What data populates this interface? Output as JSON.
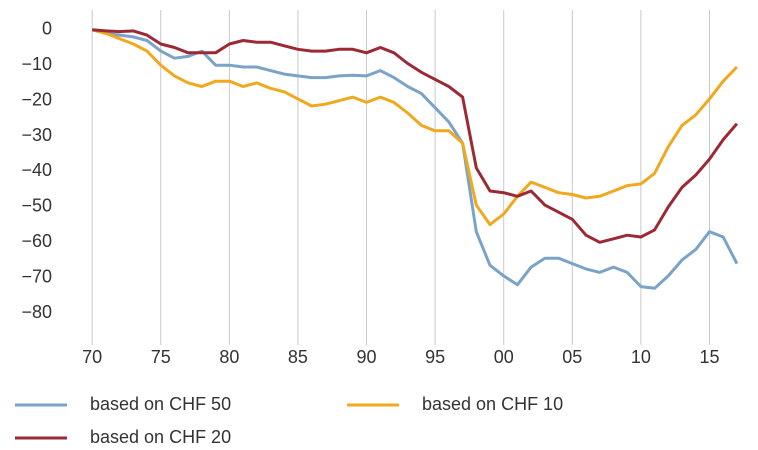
{
  "chart_data": {
    "type": "line",
    "x": [
      1970,
      1971,
      1972,
      1973,
      1974,
      1975,
      1976,
      1977,
      1978,
      1979,
      1980,
      1981,
      1982,
      1983,
      1984,
      1985,
      1986,
      1987,
      1988,
      1989,
      1990,
      1991,
      1992,
      1993,
      1994,
      1995,
      1996,
      1997,
      1998,
      1999,
      2000,
      2001,
      2002,
      2003,
      2004,
      2005,
      2006,
      2007,
      2008,
      2009,
      2010,
      2011,
      2012,
      2013,
      2014,
      2015,
      2016,
      2017
    ],
    "series": [
      {
        "name": "based on CHF 50",
        "color": "#7ba3c8",
        "values": [
          0,
          -1,
          -1.5,
          -2,
          -3,
          -6,
          -8,
          -7.5,
          -6,
          -10,
          -10,
          -10.5,
          -10.5,
          -11.5,
          -12.5,
          -13,
          -13.5,
          -13.5,
          -13,
          -12.8,
          -13,
          -11.5,
          -13.5,
          -16,
          -18,
          -22,
          -26,
          -32,
          -57,
          -66.5,
          -69.5,
          -72,
          -67,
          -64.5,
          -64.5,
          -66,
          -67.5,
          -68.5,
          -67,
          -68.5,
          -72.5,
          -73,
          -69.5,
          -65,
          -62,
          -57,
          -58.5,
          -66
        ]
      },
      {
        "name": "based on CHF 10",
        "color": "#f0a81c",
        "values": [
          0,
          -1,
          -2.5,
          -4,
          -6,
          -10,
          -13,
          -15,
          -16,
          -14.5,
          -14.5,
          -16,
          -15,
          -16.5,
          -17.5,
          -19.5,
          -21.5,
          -21,
          -20,
          -19,
          -20.5,
          -19,
          -20.5,
          -23.5,
          -27,
          -28.5,
          -28.5,
          -32,
          -49.5,
          -55,
          -52,
          -47,
          -43,
          -44.5,
          -46,
          -46.5,
          -47.5,
          -47,
          -45.5,
          -44,
          -43.5,
          -40.5,
          -33,
          -27,
          -24,
          -19.5,
          -14.5,
          -10.5
        ]
      },
      {
        "name": "based on CHF 20",
        "color": "#9b2a35",
        "values": [
          0,
          -0.3,
          -0.5,
          -0.3,
          -1.5,
          -4,
          -5,
          -6.5,
          -6.5,
          -6.5,
          -4,
          -3,
          -3.5,
          -3.5,
          -4.5,
          -5.5,
          -6,
          -6,
          -5.5,
          -5.5,
          -6.5,
          -5,
          -6.5,
          -9.5,
          -12,
          -14,
          -16,
          -19,
          -39,
          -45.5,
          -46,
          -47,
          -45.5,
          -49.5,
          -51.5,
          -53.5,
          -58,
          -60,
          -59,
          -58,
          -58.5,
          -56.5,
          -50,
          -44.5,
          -41,
          -36.5,
          -31,
          -26.5
        ]
      }
    ],
    "xlim": [
      1967.8,
      2018.1
    ],
    "xticks": [
      {
        "value": 1970,
        "label": "70"
      },
      {
        "value": 1975,
        "label": "75"
      },
      {
        "value": 1980,
        "label": "80"
      },
      {
        "value": 1985,
        "label": "85"
      },
      {
        "value": 1990,
        "label": "90"
      },
      {
        "value": 1995,
        "label": "95"
      },
      {
        "value": 2000,
        "label": "00"
      },
      {
        "value": 2005,
        "label": "05"
      },
      {
        "value": 2010,
        "label": "10"
      },
      {
        "value": 2015,
        "label": "15"
      }
    ],
    "ylim": [
      -89,
      5.6
    ],
    "yticks": [
      0,
      {
        "value": -10,
        "label": "−10"
      },
      {
        "value": -20,
        "label": "−20"
      },
      {
        "value": -30,
        "label": "−30"
      },
      {
        "value": -40,
        "label": "−40"
      },
      {
        "value": -50,
        "label": "−50"
      },
      {
        "value": -60,
        "label": "−60"
      },
      {
        "value": -70,
        "label": "−70"
      },
      {
        "value": -80,
        "label": "−80"
      }
    ],
    "grid": "x"
  }
}
